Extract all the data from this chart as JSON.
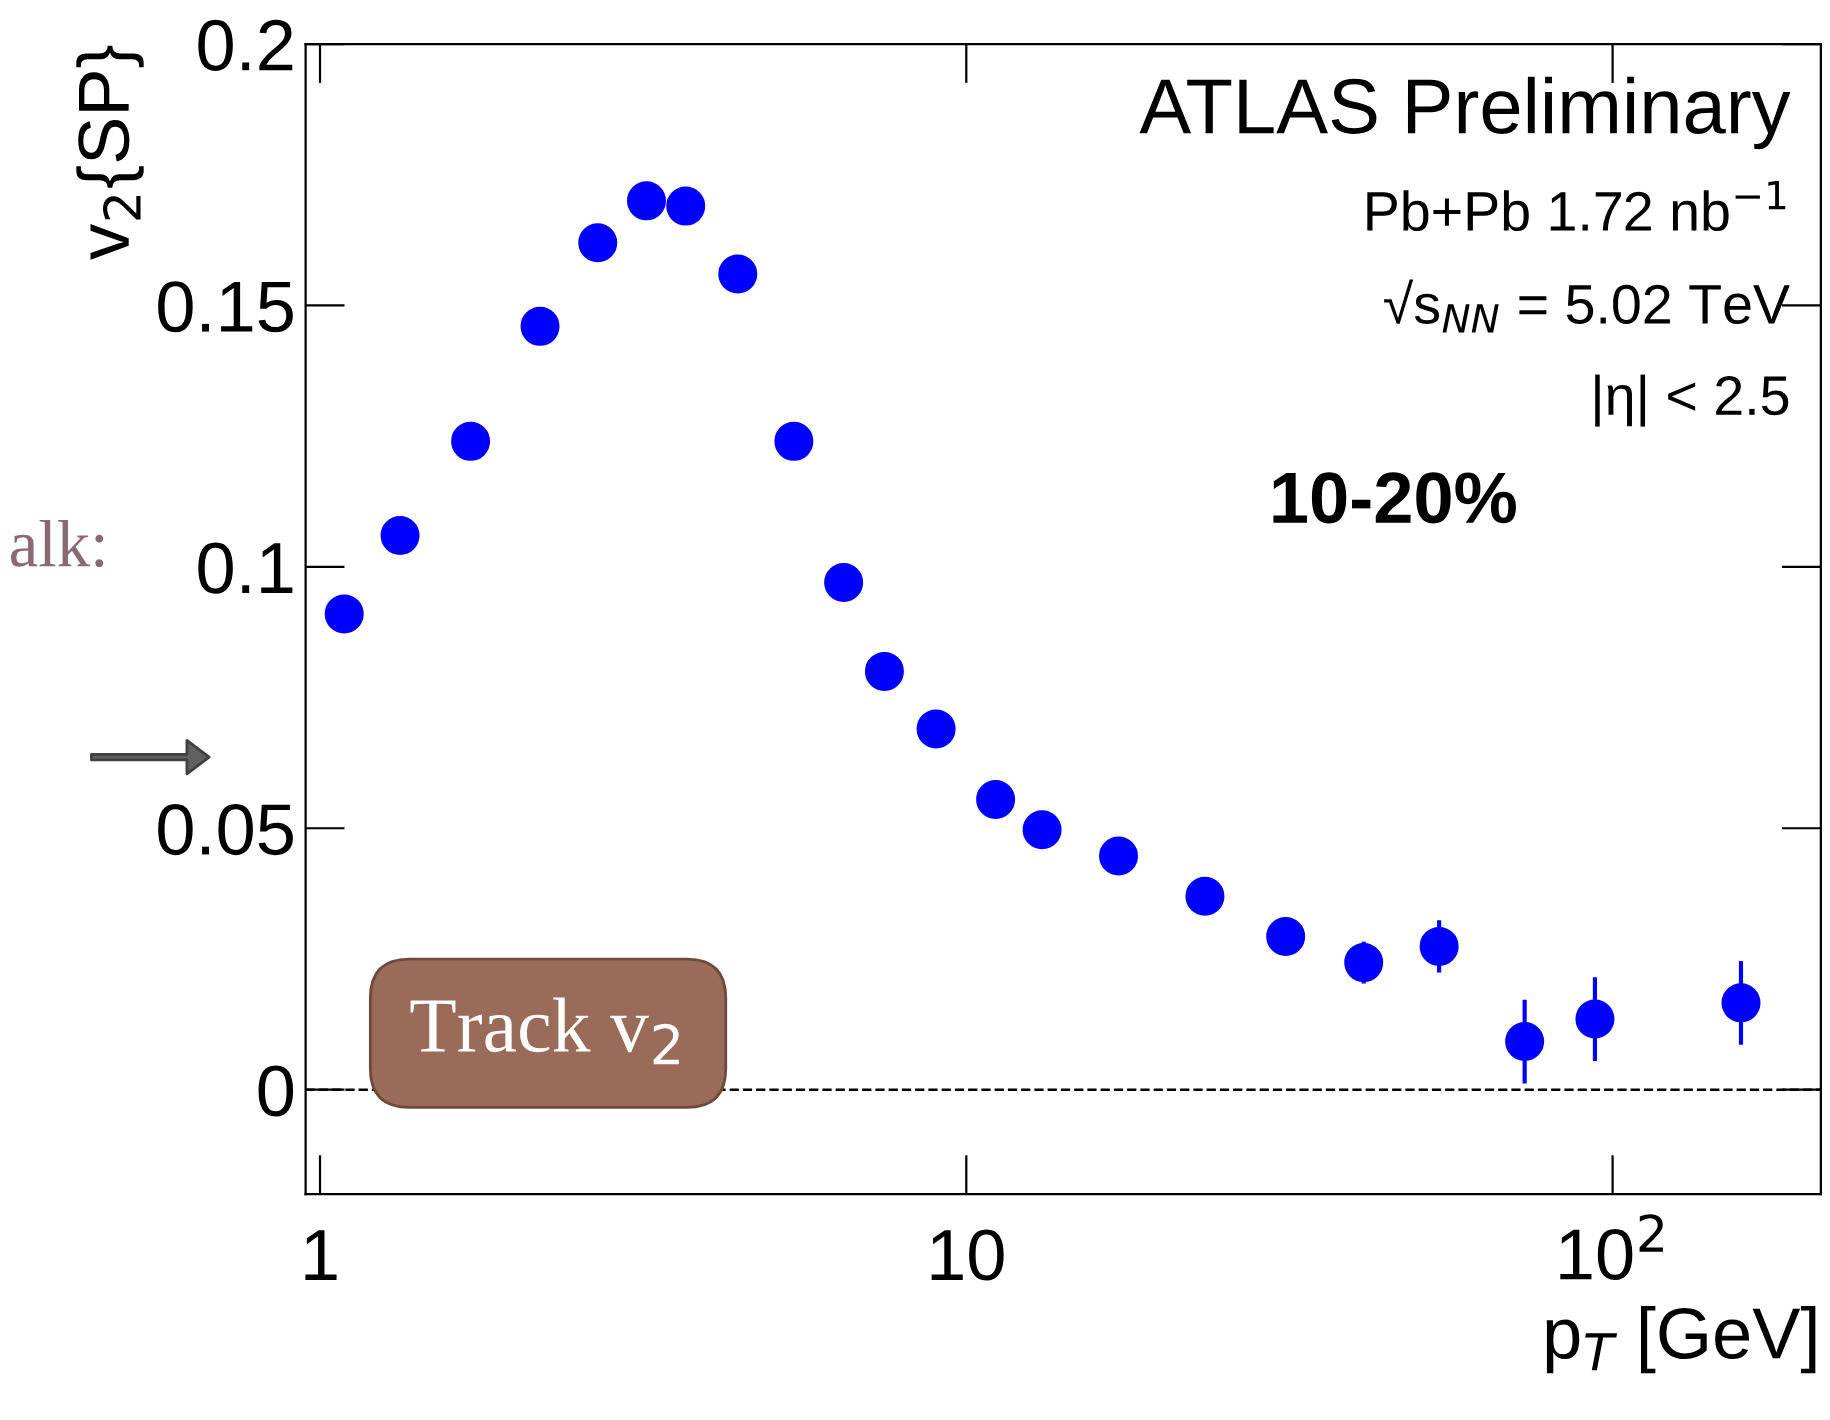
{
  "chart_data": {
    "type": "scatter",
    "xlabel": "p$_{T}$ [GeV]",
    "ylabel": "v$_{2}${SP}",
    "log": "x",
    "xlim": [
      0.95,
      210
    ],
    "ylim": [
      -0.02,
      0.2
    ],
    "xticks": [
      1,
      10,
      {
        "value": 100,
        "label": "10$^{2}$"
      }
    ],
    "yticks": [
      0,
      0.05,
      0.1,
      0.15,
      0.2
    ],
    "marker": "circle",
    "grid": false,
    "legend": false,
    "series": [
      {
        "color": "#0000ff",
        "x": [
          1.09,
          1.33,
          1.71,
          2.19,
          2.69,
          3.2,
          3.68,
          4.43,
          5.41,
          6.46,
          7.47,
          8.98,
          11.1,
          13.1,
          17.2,
          23.4,
          31.2,
          41.2,
          53.9,
          73.1,
          93.9,
          158
        ],
        "values": [
          0.091,
          0.106,
          0.124,
          0.146,
          0.162,
          0.17,
          0.169,
          0.156,
          0.124,
          0.097,
          0.08,
          0.069,
          0.0555,
          0.0497,
          0.0447,
          0.037,
          0.0293,
          0.0243,
          0.0274,
          0.0092,
          0.0135,
          0.0166
        ],
        "errors": [
          null,
          null,
          null,
          null,
          null,
          null,
          null,
          null,
          null,
          null,
          null,
          null,
          null,
          null,
          null,
          null,
          null,
          0.004,
          0.005,
          0.008,
          0.008,
          0.008
        ]
      }
    ],
    "ref_lines": [
      {
        "axis": "y",
        "value": 0,
        "line_style": "dashed",
        "color": "#000000"
      }
    ],
    "annotations": [
      "ATLAS Preliminary",
      "Pb+Pb 1.72 nb$^{−1}$",
      "√s$_{NN}$ = 5.02 TeV",
      "|η| < 2.5",
      "10-20%",
      "Track v$_{2}$",
      "alk:"
    ]
  }
}
